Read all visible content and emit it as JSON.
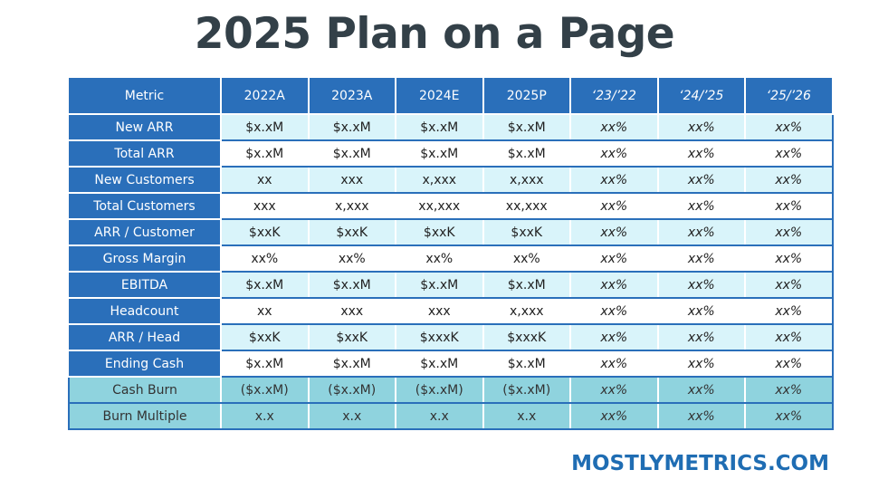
{
  "title": "2025 Plan on a Page",
  "brand": "MOSTLYMETRICS.COM",
  "table": {
    "headers": [
      "Metric",
      "2022A",
      "2023A",
      "2024E",
      "2025P",
      "‘23/’22",
      "‘24/’25",
      "‘25/’26"
    ],
    "rows": [
      {
        "metric": "New ARR",
        "values": [
          "$x.xM",
          "$x.xM",
          "$x.xM",
          "$x.xM",
          "xx%",
          "xx%",
          "xx%"
        ]
      },
      {
        "metric": "Total ARR",
        "values": [
          "$x.xM",
          "$x.xM",
          "$x.xM",
          "$x.xM",
          "xx%",
          "xx%",
          "xx%"
        ]
      },
      {
        "metric": "New Customers",
        "values": [
          "xx",
          "xxx",
          "x,xxx",
          "x,xxx",
          "xx%",
          "xx%",
          "xx%"
        ]
      },
      {
        "metric": "Total Customers",
        "values": [
          "xxx",
          "x,xxx",
          "xx,xxx",
          "xx,xxx",
          "xx%",
          "xx%",
          "xx%"
        ]
      },
      {
        "metric": "ARR / Customer",
        "values": [
          "$xxK",
          "$xxK",
          "$xxK",
          "$xxK",
          "xx%",
          "xx%",
          "xx%"
        ]
      },
      {
        "metric": "Gross Margin",
        "values": [
          "xx%",
          "xx%",
          "xx%",
          "xx%",
          "xx%",
          "xx%",
          "xx%"
        ]
      },
      {
        "metric": "EBITDA",
        "values": [
          "$x.xM",
          "$x.xM",
          "$x.xM",
          "$x.xM",
          "xx%",
          "xx%",
          "xx%"
        ]
      },
      {
        "metric": "Headcount",
        "values": [
          "xx",
          "xxx",
          "xxx",
          "x,xxx",
          "xx%",
          "xx%",
          "xx%"
        ]
      },
      {
        "metric": "ARR / Head",
        "values": [
          "$xxK",
          "$xxK",
          "$xxxK",
          "$xxxK",
          "xx%",
          "xx%",
          "xx%"
        ]
      },
      {
        "metric": "Ending Cash",
        "values": [
          "$x.xM",
          "$x.xM",
          "$x.xM",
          "$x.xM",
          "xx%",
          "xx%",
          "xx%"
        ]
      },
      {
        "metric": "Cash Burn",
        "values": [
          "($x.xM)",
          "($x.xM)",
          "($x.xM)",
          "($x.xM)",
          "xx%",
          "xx%",
          "xx%"
        ]
      },
      {
        "metric": "Burn Multiple",
        "values": [
          "x.x",
          "x.x",
          "x.x",
          "x.x",
          "xx%",
          "xx%",
          "xx%"
        ]
      }
    ]
  },
  "colors": {
    "header_blue": "#2a6fba",
    "row_light": "#d9f4fa",
    "row_teal": "#8fd3de",
    "title_text": "#334048",
    "brand_text": "#1f6db3"
  }
}
